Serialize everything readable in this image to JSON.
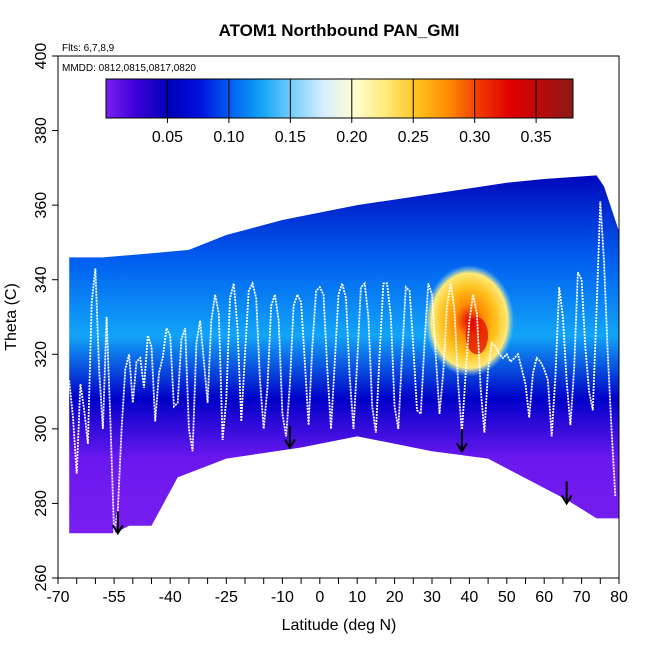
{
  "chart_data": {
    "type": "heatmap",
    "title": "ATOM1 Northbound PAN_GMI",
    "annotations": {
      "flights": "Flts: 6,7,8,9",
      "dates": "MMDD: 0812,0815,0817,0820"
    },
    "xlabel": "Latitude (deg N)",
    "ylabel": "Theta (C)",
    "xlim": [
      -70,
      80
    ],
    "ylim": [
      260,
      400
    ],
    "xticks": [
      {
        "value": -70,
        "label": "-70"
      },
      {
        "value": -55,
        "label": "-55"
      },
      {
        "value": -40,
        "label": "-40"
      },
      {
        "value": -25,
        "label": "-25"
      },
      {
        "value": -10,
        "label": "-10"
      },
      {
        "value": 0,
        "label": "0"
      },
      {
        "value": 10,
        "label": "10"
      },
      {
        "value": 20,
        "label": "20"
      },
      {
        "value": 30,
        "label": "30"
      },
      {
        "value": 40,
        "label": "40"
      },
      {
        "value": 50,
        "label": "50"
      },
      {
        "value": 60,
        "label": "60"
      },
      {
        "value": 70,
        "label": "70"
      },
      {
        "value": 80,
        "label": "80"
      }
    ],
    "yticks": [
      {
        "value": 260,
        "label": "260"
      },
      {
        "value": 280,
        "label": "280"
      },
      {
        "value": 300,
        "label": "300"
      },
      {
        "value": 320,
        "label": "320"
      },
      {
        "value": 340,
        "label": "340"
      },
      {
        "value": 360,
        "label": "360"
      },
      {
        "value": 380,
        "label": "380"
      },
      {
        "value": 400,
        "label": "400"
      }
    ],
    "colorbar": {
      "min": 0.0,
      "max": 0.38,
      "ticks": [
        {
          "value": 0.05,
          "label": "0.05"
        },
        {
          "value": 0.1,
          "label": "0.10"
        },
        {
          "value": 0.15,
          "label": "0.15"
        },
        {
          "value": 0.2,
          "label": "0.20"
        },
        {
          "value": 0.25,
          "label": "0.25"
        },
        {
          "value": 0.3,
          "label": "0.30"
        },
        {
          "value": 0.35,
          "label": "0.35"
        }
      ],
      "colors": [
        "#7a1ff0",
        "#3a00d8",
        "#0000b8",
        "#0010dd",
        "#0060f0",
        "#12a4f7",
        "#78cff8",
        "#d8eeff",
        "#ffffd0",
        "#ffe978",
        "#ffc21e",
        "#ff8b00",
        "#f03800",
        "#e00000",
        "#b80a0a",
        "#8b1a1a"
      ]
    },
    "tropopause_markers": [
      {
        "lat": -54,
        "theta": 272
      },
      {
        "lat": -8,
        "theta": 295
      },
      {
        "lat": 38,
        "theta": 294
      },
      {
        "lat": 66,
        "theta": 280
      }
    ],
    "flight_track": [
      [
        -67,
        313
      ],
      [
        -66,
        303
      ],
      [
        -65,
        288
      ],
      [
        -64,
        312
      ],
      [
        -63,
        305
      ],
      [
        -62,
        296
      ],
      [
        -61,
        334
      ],
      [
        -60,
        343
      ],
      [
        -59,
        316
      ],
      [
        -58,
        300
      ],
      [
        -57,
        330
      ],
      [
        -56,
        302
      ],
      [
        -55,
        272
      ],
      [
        -54,
        278
      ],
      [
        -53,
        300
      ],
      [
        -52,
        316
      ],
      [
        -51,
        320
      ],
      [
        -50,
        307
      ],
      [
        -49,
        318
      ],
      [
        -48,
        319
      ],
      [
        -47,
        311
      ],
      [
        -46,
        325
      ],
      [
        -45,
        322
      ],
      [
        -44,
        302
      ],
      [
        -43,
        315
      ],
      [
        -42,
        319
      ],
      [
        -41,
        327
      ],
      [
        -40,
        325
      ],
      [
        -39,
        306
      ],
      [
        -38,
        307
      ],
      [
        -37,
        324
      ],
      [
        -36,
        327
      ],
      [
        -35,
        300
      ],
      [
        -34,
        294
      ],
      [
        -33,
        323
      ],
      [
        -32,
        329
      ],
      [
        -31,
        318
      ],
      [
        -30,
        307
      ],
      [
        -29,
        329
      ],
      [
        -28,
        336
      ],
      [
        -27,
        331
      ],
      [
        -26,
        297
      ],
      [
        -25,
        308
      ],
      [
        -24,
        335
      ],
      [
        -23,
        339
      ],
      [
        -22,
        327
      ],
      [
        -21,
        302
      ],
      [
        -20,
        320
      ],
      [
        -19,
        337
      ],
      [
        -18,
        339
      ],
      [
        -17,
        335
      ],
      [
        -16,
        313
      ],
      [
        -15,
        300
      ],
      [
        -14,
        311
      ],
      [
        -13,
        333
      ],
      [
        -12,
        336
      ],
      [
        -11,
        329
      ],
      [
        -10,
        304
      ],
      [
        -9,
        298
      ],
      [
        -8,
        312
      ],
      [
        -7,
        333
      ],
      [
        -6,
        336
      ],
      [
        -5,
        334
      ],
      [
        -4,
        318
      ],
      [
        -3,
        301
      ],
      [
        -2,
        322
      ],
      [
        -1,
        337
      ],
      [
        0,
        338
      ],
      [
        1,
        336
      ],
      [
        2,
        316
      ],
      [
        3,
        300
      ],
      [
        4,
        318
      ],
      [
        5,
        336
      ],
      [
        6,
        339
      ],
      [
        7,
        335
      ],
      [
        8,
        314
      ],
      [
        9,
        300
      ],
      [
        10,
        318
      ],
      [
        11,
        338
      ],
      [
        12,
        339
      ],
      [
        13,
        330
      ],
      [
        14,
        306
      ],
      [
        15,
        299
      ],
      [
        16,
        320
      ],
      [
        17,
        339
      ],
      [
        18,
        339
      ],
      [
        19,
        330
      ],
      [
        20,
        306
      ],
      [
        21,
        300
      ],
      [
        22,
        320
      ],
      [
        23,
        338
      ],
      [
        24,
        337
      ],
      [
        25,
        322
      ],
      [
        26,
        305
      ],
      [
        27,
        304
      ],
      [
        28,
        323
      ],
      [
        29,
        339
      ],
      [
        30,
        336
      ],
      [
        31,
        320
      ],
      [
        32,
        304
      ],
      [
        33,
        315
      ],
      [
        34,
        333
      ],
      [
        35,
        339
      ],
      [
        36,
        332
      ],
      [
        37,
        312
      ],
      [
        38,
        299
      ],
      [
        39,
        315
      ],
      [
        40,
        329
      ],
      [
        41,
        336
      ],
      [
        42,
        331
      ],
      [
        43,
        311
      ],
      [
        44,
        299
      ],
      [
        45,
        316
      ],
      [
        46,
        323
      ],
      [
        47,
        322
      ],
      [
        48,
        320
      ],
      [
        49,
        319
      ],
      [
        50,
        320
      ],
      [
        51,
        318
      ],
      [
        52,
        319
      ],
      [
        53,
        320
      ],
      [
        54,
        316
      ],
      [
        55,
        312
      ],
      [
        56,
        303
      ],
      [
        57,
        315
      ],
      [
        58,
        319
      ],
      [
        59,
        318
      ],
      [
        60,
        316
      ],
      [
        61,
        313
      ],
      [
        62,
        298
      ],
      [
        63,
        314
      ],
      [
        64,
        338
      ],
      [
        65,
        330
      ],
      [
        66,
        313
      ],
      [
        67,
        301
      ],
      [
        68,
        316
      ],
      [
        69,
        342
      ],
      [
        70,
        340
      ],
      [
        71,
        322
      ],
      [
        72,
        310
      ],
      [
        73,
        305
      ],
      [
        74,
        332
      ],
      [
        75,
        361
      ],
      [
        76,
        345
      ],
      [
        77,
        320
      ],
      [
        78,
        300
      ],
      [
        79,
        282
      ]
    ]
  }
}
